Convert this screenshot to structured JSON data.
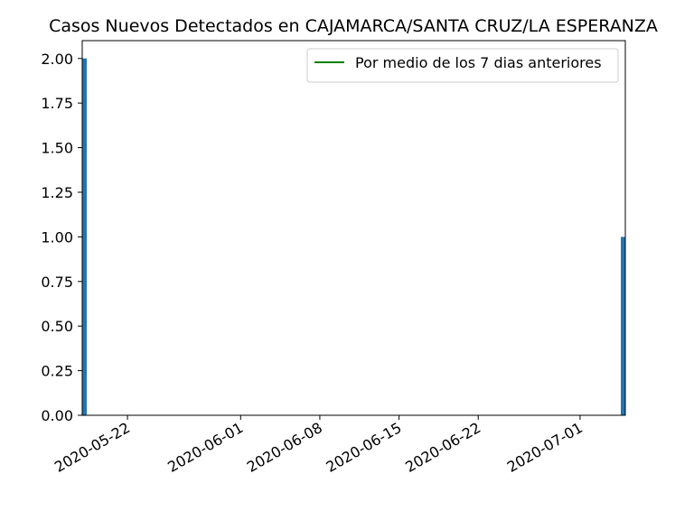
{
  "chart_data": {
    "type": "bar",
    "title": "Casos Nuevos Detectados en CAJAMARCA/SANTA CRUZ/LA ESPERANZA",
    "xlabel": "",
    "ylabel": "",
    "x_type": "date",
    "xlim": [
      "2020-05-18",
      "2020-07-05"
    ],
    "ylim": [
      0,
      2.1
    ],
    "x_ticks": [
      "2020-05-22",
      "2020-06-01",
      "2020-06-08",
      "2020-06-15",
      "2020-06-22",
      "2020-07-01"
    ],
    "y_ticks": [
      "0.00",
      "0.25",
      "0.50",
      "0.75",
      "1.00",
      "1.25",
      "1.50",
      "1.75",
      "2.00"
    ],
    "grid": false,
    "legend_position": "top-right",
    "series": [
      {
        "type": "bar",
        "color": "#1f77b4",
        "points": [
          {
            "x": "2020-05-18",
            "y": 2
          },
          {
            "x": "2020-07-05",
            "y": 1
          }
        ]
      },
      {
        "type": "line",
        "name": "Por medio de los 7 dias anteriores",
        "color": "#008000",
        "points": []
      }
    ]
  }
}
